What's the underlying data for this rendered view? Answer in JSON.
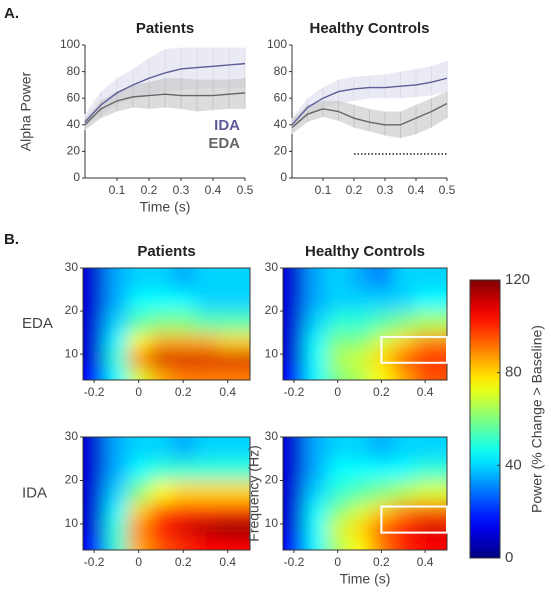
{
  "panels": [
    "A.",
    "B."
  ],
  "chart_data": [
    {
      "type": "line",
      "title": "Patients",
      "ylabel": "Alpha Power",
      "xlabel": "Time (s)",
      "x": [
        0,
        0.05,
        0.1,
        0.15,
        0.2,
        0.25,
        0.3,
        0.35,
        0.4,
        0.45,
        0.5
      ],
      "xlim": [
        0,
        0.5
      ],
      "ylim": [
        0,
        100
      ],
      "xticks": [
        0.1,
        0.2,
        0.3,
        0.4,
        0.5
      ],
      "yticks": [
        0,
        20,
        40,
        60,
        80,
        100
      ],
      "series": [
        {
          "name": "IDA",
          "color": "#5c5c99",
          "band_color": "#dcdcec",
          "values": [
            42,
            55,
            64,
            70,
            75,
            79,
            82,
            83,
            84,
            85,
            86
          ],
          "upper": [
            48,
            65,
            75,
            82,
            90,
            97,
            98,
            98,
            98,
            98,
            98
          ],
          "lower": [
            38,
            47,
            55,
            60,
            63,
            65,
            66,
            67,
            68,
            68,
            68
          ]
        },
        {
          "name": "EDA",
          "color": "#666666",
          "band_color": "#c4c4c4",
          "values": [
            40,
            52,
            58,
            61,
            62,
            63,
            62,
            62,
            62,
            63,
            64
          ],
          "upper": [
            45,
            58,
            65,
            70,
            72,
            75,
            75,
            74,
            74,
            74,
            75
          ],
          "lower": [
            36,
            45,
            50,
            53,
            52,
            53,
            52,
            50,
            51,
            52,
            52
          ]
        }
      ]
    },
    {
      "type": "line",
      "title": "Healthy Controls",
      "x": [
        0,
        0.05,
        0.1,
        0.15,
        0.2,
        0.25,
        0.3,
        0.35,
        0.4,
        0.45,
        0.5
      ],
      "xlim": [
        0,
        0.5
      ],
      "ylim": [
        0,
        100
      ],
      "xticks": [
        0.1,
        0.2,
        0.3,
        0.4,
        0.5
      ],
      "yticks": [
        0,
        20,
        40,
        60,
        80,
        100
      ],
      "significance": {
        "x": [
          0.2,
          0.5
        ],
        "y": 18
      },
      "series": [
        {
          "color": "#5c5c99",
          "band_color": "#dcdcec",
          "values": [
            40,
            53,
            60,
            65,
            67,
            68,
            68,
            69,
            70,
            72,
            75
          ],
          "upper": [
            45,
            60,
            68,
            74,
            76,
            77,
            78,
            80,
            82,
            84,
            88
          ],
          "lower": [
            36,
            46,
            53,
            56,
            58,
            60,
            60,
            60,
            61,
            62,
            65
          ]
        },
        {
          "color": "#666666",
          "band_color": "#c4c4c4",
          "values": [
            38,
            48,
            52,
            50,
            45,
            42,
            40,
            40,
            45,
            50,
            56
          ],
          "upper": [
            44,
            55,
            58,
            58,
            55,
            52,
            50,
            50,
            55,
            60,
            65
          ],
          "lower": [
            33,
            42,
            46,
            43,
            38,
            35,
            32,
            30,
            33,
            38,
            45
          ]
        }
      ]
    },
    {
      "type": "heatmap",
      "title": "Patients",
      "row_label": "EDA",
      "colormap": "jet",
      "x_edges": [
        -0.25,
        -0.15,
        -0.05,
        0.05,
        0.15,
        0.25,
        0.35,
        0.5
      ],
      "y_edges": [
        4,
        7,
        11,
        15,
        20,
        25,
        30
      ],
      "xlim": [
        -0.25,
        0.5
      ],
      "ylim": [
        4,
        30
      ],
      "xticks": [
        -0.2,
        0,
        0.2,
        0.4
      ],
      "yticks": [
        10,
        20,
        30
      ],
      "z": [
        [
          15,
          45,
          70,
          85,
          90,
          90,
          90
        ],
        [
          10,
          50,
          90,
          110,
          110,
          110,
          110
        ],
        [
          10,
          45,
          75,
          85,
          85,
          85,
          80
        ],
        [
          10,
          40,
          55,
          60,
          60,
          55,
          55
        ],
        [
          10,
          35,
          45,
          45,
          45,
          40,
          40
        ],
        [
          10,
          35,
          40,
          40,
          35,
          40,
          40
        ]
      ]
    },
    {
      "type": "heatmap",
      "title": "Healthy Controls",
      "colormap": "jet",
      "x_edges": [
        -0.25,
        -0.15,
        -0.05,
        0.05,
        0.15,
        0.25,
        0.35,
        0.5
      ],
      "y_edges": [
        4,
        7,
        11,
        15,
        20,
        25,
        30
      ],
      "xlim": [
        -0.25,
        0.5
      ],
      "ylim": [
        4,
        30
      ],
      "xticks": [
        -0.2,
        0,
        0.2,
        0.4
      ],
      "yticks": [
        10,
        20,
        30
      ],
      "box": {
        "x": [
          0.2,
          0.5
        ],
        "y": [
          8,
          14
        ]
      },
      "z": [
        [
          15,
          45,
          60,
          65,
          75,
          85,
          95
        ],
        [
          10,
          45,
          65,
          70,
          80,
          95,
          100
        ],
        [
          10,
          45,
          60,
          60,
          70,
          80,
          90
        ],
        [
          10,
          40,
          50,
          50,
          55,
          60,
          65
        ],
        [
          10,
          35,
          40,
          40,
          40,
          40,
          45
        ],
        [
          10,
          35,
          40,
          35,
          30,
          40,
          40
        ]
      ]
    },
    {
      "type": "heatmap",
      "row_label": "IDA",
      "colormap": "jet",
      "x_edges": [
        -0.25,
        -0.15,
        -0.05,
        0.05,
        0.15,
        0.25,
        0.35,
        0.5
      ],
      "y_edges": [
        4,
        7,
        11,
        15,
        20,
        25,
        30
      ],
      "xlim": [
        -0.25,
        0.5
      ],
      "ylim": [
        4,
        30
      ],
      "xticks": [
        -0.2,
        0,
        0.2,
        0.4
      ],
      "yticks": [
        10,
        20,
        30
      ],
      "z": [
        [
          15,
          50,
          85,
          95,
          100,
          105,
          105
        ],
        [
          10,
          50,
          90,
          105,
          110,
          115,
          120
        ],
        [
          10,
          45,
          80,
          95,
          100,
          100,
          100
        ],
        [
          10,
          40,
          60,
          75,
          80,
          80,
          80
        ],
        [
          10,
          35,
          45,
          50,
          50,
          50,
          50
        ],
        [
          10,
          35,
          40,
          40,
          35,
          40,
          40
        ]
      ]
    },
    {
      "type": "heatmap",
      "ylabel": "Frequency (Hz)",
      "xlabel": "Time (s)",
      "colormap": "jet",
      "x_edges": [
        -0.25,
        -0.15,
        -0.05,
        0.05,
        0.15,
        0.25,
        0.35,
        0.5
      ],
      "y_edges": [
        4,
        7,
        11,
        15,
        20,
        25,
        30
      ],
      "xlim": [
        -0.25,
        0.5
      ],
      "ylim": [
        4,
        30
      ],
      "xticks": [
        -0.2,
        0,
        0.2,
        0.4
      ],
      "yticks": [
        10,
        20,
        30
      ],
      "box": {
        "x": [
          0.2,
          0.5
        ],
        "y": [
          8,
          14
        ]
      },
      "z": [
        [
          15,
          45,
          65,
          75,
          90,
          100,
          105
        ],
        [
          10,
          45,
          70,
          80,
          95,
          105,
          110
        ],
        [
          10,
          45,
          60,
          70,
          80,
          90,
          95
        ],
        [
          10,
          40,
          50,
          55,
          60,
          65,
          70
        ],
        [
          10,
          35,
          45,
          45,
          45,
          45,
          50
        ],
        [
          10,
          35,
          40,
          40,
          35,
          40,
          40
        ]
      ]
    },
    {
      "type": "colorbar",
      "label": "Power (% Change > Baseline)",
      "colormap": "jet",
      "zlim": [
        0,
        120
      ],
      "ticks": [
        0,
        40,
        80,
        120
      ]
    }
  ]
}
